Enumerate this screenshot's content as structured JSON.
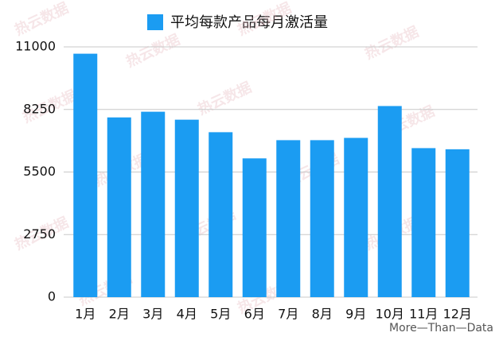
{
  "chart_data": {
    "type": "bar",
    "legend": "平均每款产品每月激活量",
    "categories": [
      "1月",
      "2月",
      "3月",
      "4月",
      "5月",
      "6月",
      "7月",
      "8月",
      "9月",
      "10月",
      "11月",
      "12月"
    ],
    "values": [
      10700,
      7900,
      8150,
      7800,
      7250,
      6100,
      6900,
      6900,
      7000,
      8400,
      6550,
      6500
    ],
    "color": "#1b9cf2",
    "ylim": [
      0,
      11000
    ],
    "yticks": [
      0,
      2750,
      5500,
      8250,
      11000
    ],
    "grid": true,
    "watermark_brand": "热云数据",
    "watermark": "More—Than—Data"
  }
}
